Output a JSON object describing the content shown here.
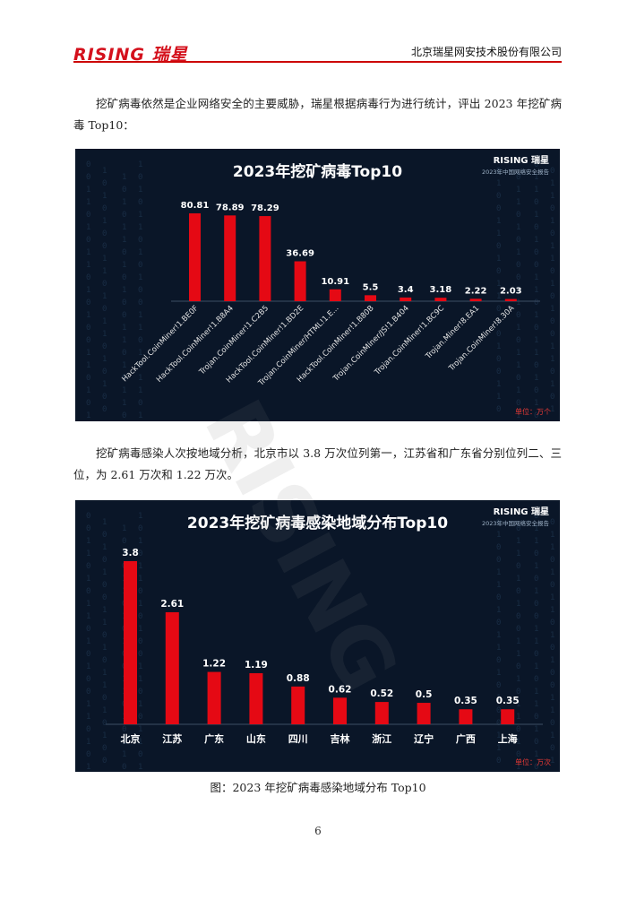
{
  "header": {
    "logo_text": "RISING 瑞星",
    "company": "北京瑞星网安技术股份有限公司"
  },
  "paragraphs": {
    "p1": "挖矿病毒依然是企业网络安全的主要威胁，瑞星根据病毒行为进行统计，评出 2023 年挖矿病毒 Top10：",
    "p2": "挖矿病毒感染人次按地域分析，北京市以 3.8 万次位列第一，江苏省和广东省分别位列二、三位，为 2.61 万次和 1.22 万次。"
  },
  "caption": "图：2023 年挖矿病毒感染地域分布 Top10",
  "page_number": "6",
  "watermark": "RISING",
  "colors": {
    "bar": "#e50914",
    "bg": "#0a1628",
    "accent": "#d4101c"
  },
  "chart_data": [
    {
      "type": "bar",
      "title": "2023年挖矿病毒Top10",
      "brand": "RISING 瑞星",
      "subtitle": "2023年中国网络安全报告",
      "unit": "单位：万个",
      "categories": [
        "HackTool.CoinMiner!1.BE0F",
        "HackTool.CoinMiner!1.B8A4",
        "Trojan.CoinMiner!1.C2B5",
        "HackTool.CoinMiner!1.BD2E",
        "Trojan.CoinMiner/HTML!1.E...",
        "HackTool.CoinMiner!1.B80B",
        "Trojan.CoinMiner/JS!1.B404",
        "Trojan.CoinMiner!1.BC9C",
        "Trojan.Miner!8.EA1",
        "Trojan.CoinMiner!8.30A"
      ],
      "values": [
        80.81,
        78.89,
        78.29,
        36.69,
        10.91,
        5.5,
        3.4,
        3.18,
        2.22,
        2.03
      ],
      "labels": [
        "80.81",
        "78.89",
        "78.29",
        "36.69",
        "10.91",
        "5.5",
        "3.4",
        "3.18",
        "2.22",
        "2.03"
      ],
      "ylim": [
        0,
        80.81
      ]
    },
    {
      "type": "bar",
      "title": "2023年挖矿病毒感染地域分布Top10",
      "brand": "RISING 瑞星",
      "subtitle": "2023年中国网络安全报告",
      "unit": "单位：万次",
      "categories": [
        "北京",
        "江苏",
        "广东",
        "山东",
        "四川",
        "吉林",
        "浙江",
        "辽宁",
        "广西",
        "上海"
      ],
      "values": [
        3.8,
        2.61,
        1.22,
        1.19,
        0.88,
        0.62,
        0.52,
        0.5,
        0.35,
        0.35
      ],
      "labels": [
        "3.8",
        "2.61",
        "1.22",
        "1.19",
        "0.88",
        "0.62",
        "0.52",
        "0.5",
        "0.35",
        "0.35"
      ],
      "ylim": [
        0,
        3.8
      ]
    }
  ]
}
